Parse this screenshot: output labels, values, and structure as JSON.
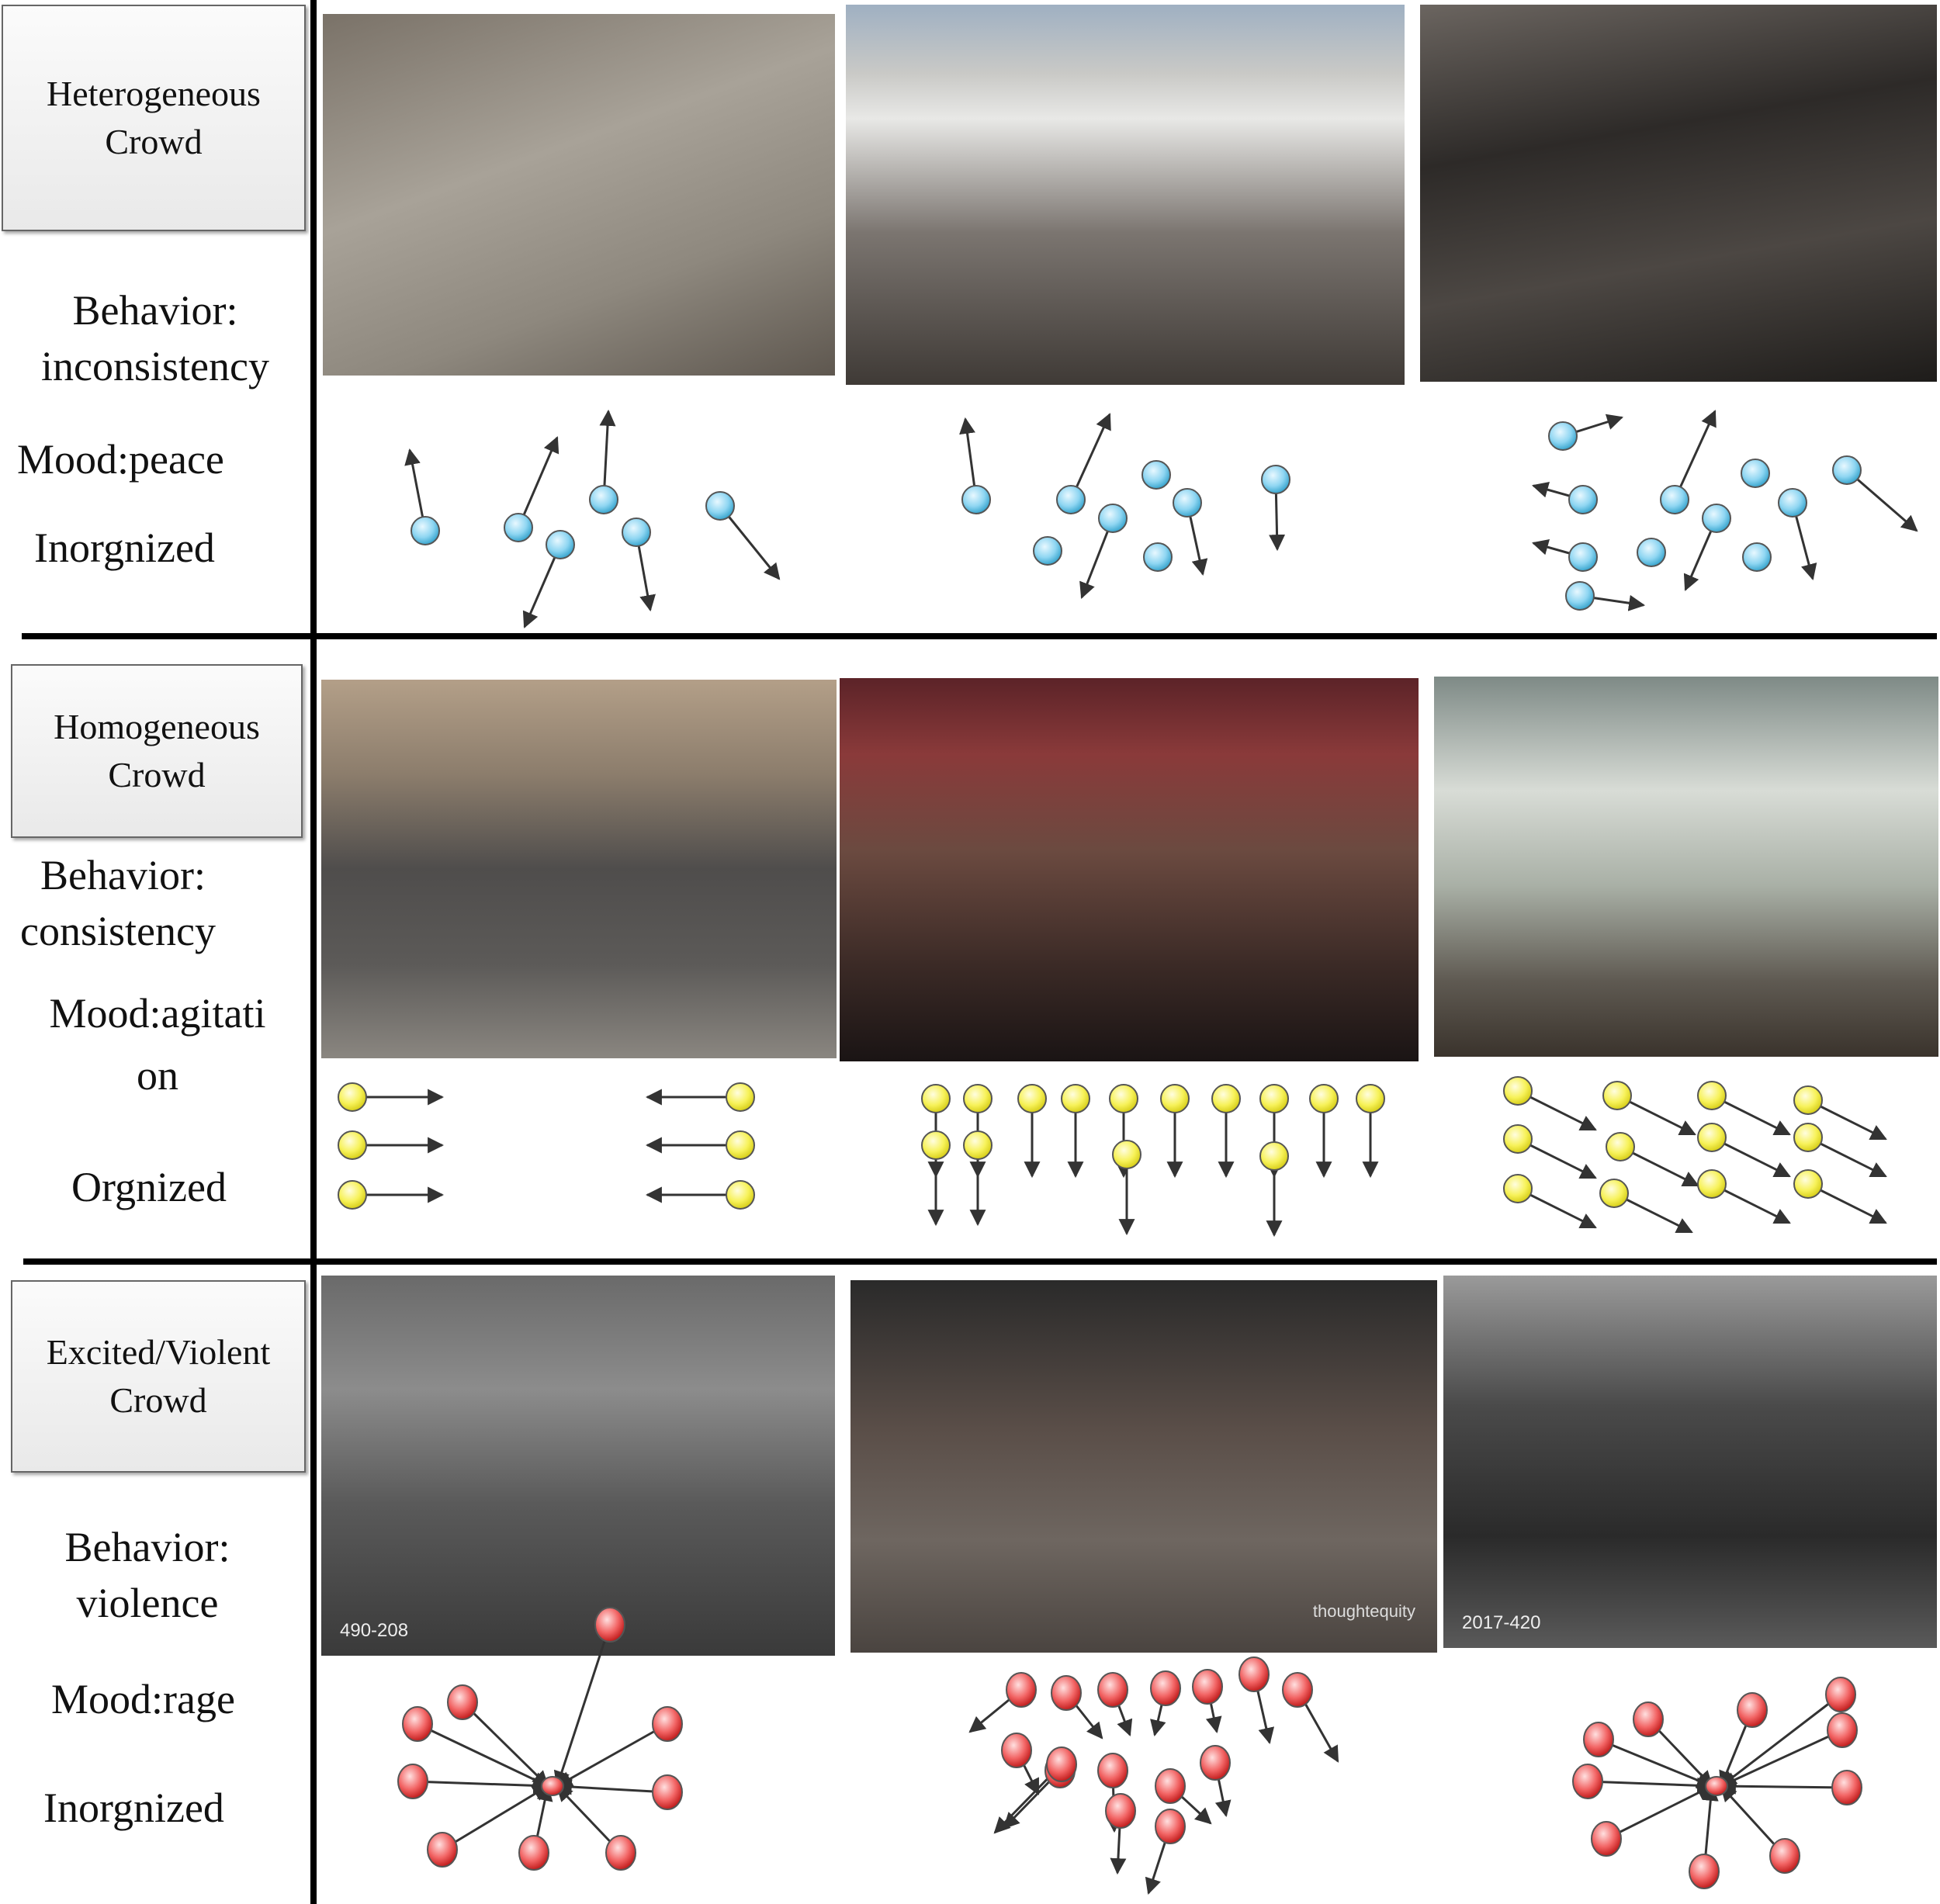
{
  "rows": [
    {
      "crowd_type": [
        "Heterogeneous",
        "Crowd"
      ],
      "behavior": [
        "Behavior:",
        "inconsistency"
      ],
      "mood": [
        "Mood:peace"
      ],
      "organization": "Inorgnized",
      "photos": [
        {
          "scene": "street-market-crowd",
          "stamp": "",
          "watermark": ""
        },
        {
          "scene": "harbor-pier-crowd",
          "stamp": "",
          "watermark": ""
        },
        {
          "scene": "dense-pedestrian-crowd",
          "stamp": "",
          "watermark": ""
        }
      ],
      "agent_color": "#4fb9e0",
      "motion_pattern": "random-directions"
    },
    {
      "crowd_type": [
        "Homogeneous",
        "Crowd"
      ],
      "behavior": [
        "Behavior:",
        "consistency"
      ],
      "mood": [
        "Mood:agitati",
        "on"
      ],
      "organization": "Orgnized",
      "photos": [
        {
          "scene": "aerial-street-march",
          "stamp": "",
          "watermark": ""
        },
        {
          "scene": "protest-march-flags",
          "stamp": "",
          "watermark": ""
        },
        {
          "scene": "military-parade",
          "stamp": "",
          "watermark": ""
        }
      ],
      "agent_color": "#f3ee3c",
      "motion_pattern": "aligned-directions"
    },
    {
      "crowd_type": [
        "Excited/Violent",
        "Crowd"
      ],
      "behavior": [
        "Behavior:",
        "violence"
      ],
      "mood": [
        "Mood:rage"
      ],
      "organization": "Inorgnized",
      "photos": [
        {
          "scene": "historical-street-fight",
          "stamp": "490-208",
          "watermark": ""
        },
        {
          "scene": "running-crowd-street",
          "stamp": "",
          "watermark": "thoughtequity"
        },
        {
          "scene": "historical-riot",
          "stamp": "2017-420",
          "watermark": ""
        }
      ],
      "agent_color": "#e83838",
      "motion_pattern": "converging-and-scattering"
    }
  ]
}
